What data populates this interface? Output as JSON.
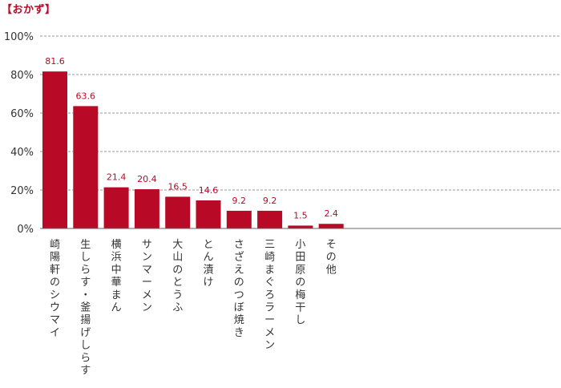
{
  "page": {
    "title": "【おかず】"
  },
  "chart_data": {
    "type": "bar",
    "title": "【おかず】",
    "xlabel": "",
    "ylabel": "",
    "ylim": [
      0,
      100
    ],
    "y_ticks": [
      "0%",
      "20%",
      "40%",
      "60%",
      "80%",
      "100%"
    ],
    "y_tick_values": [
      0,
      20,
      40,
      60,
      80,
      100
    ],
    "grid": true,
    "bar_color": "#b80a26",
    "label_color": "#b80a26",
    "categories": [
      "崎陽軒のシウマイ",
      "生しらす・釜揚げしらす",
      "横浜中華まん",
      "サンマーメン",
      "大山のとうふ",
      "とん漬け",
      "さざえのつぼ焼き",
      "三崎まぐろラーメン",
      "小田原の梅干し",
      "その他"
    ],
    "values": [
      81.6,
      63.6,
      21.4,
      20.4,
      16.5,
      14.6,
      9.2,
      9.2,
      1.5,
      2.4
    ],
    "value_labels": [
      "81.6",
      "63.6",
      "21.4",
      "20.4",
      "16.5",
      "14.6",
      "9.2",
      "9.2",
      "1.5",
      "2.4"
    ]
  }
}
